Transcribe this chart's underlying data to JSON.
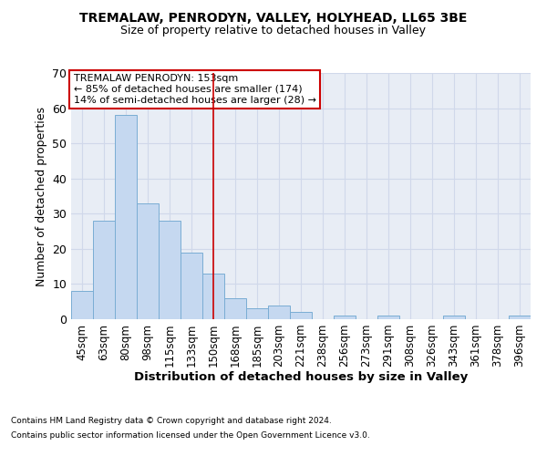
{
  "title1": "TREMALAW, PENRODYN, VALLEY, HOLYHEAD, LL65 3BE",
  "title2": "Size of property relative to detached houses in Valley",
  "xlabel": "Distribution of detached houses by size in Valley",
  "ylabel": "Number of detached properties",
  "all_labels": [
    "45sqm",
    "63sqm",
    "80sqm",
    "98sqm",
    "115sqm",
    "133sqm",
    "150sqm",
    "168sqm",
    "185sqm",
    "203sqm",
    "221sqm",
    "238sqm",
    "256sqm",
    "273sqm",
    "291sqm",
    "308sqm",
    "326sqm",
    "343sqm",
    "361sqm",
    "378sqm",
    "396sqm"
  ],
  "all_values": [
    8,
    28,
    58,
    33,
    28,
    19,
    13,
    6,
    3,
    4,
    2,
    0,
    1,
    0,
    1,
    0,
    0,
    1,
    0,
    0,
    1
  ],
  "bar_color": "#c5d8f0",
  "bar_edge_color": "#7aadd4",
  "vline_x_idx": 6,
  "vline_color": "#cc0000",
  "annotation_line1": "TREMALAW PENRODYN: 153sqm",
  "annotation_line2": "← 85% of detached houses are smaller (174)",
  "annotation_line3": "14% of semi-detached houses are larger (28) →",
  "annotation_box_facecolor": "#ffffff",
  "annotation_box_edgecolor": "#cc0000",
  "ylim": [
    0,
    70
  ],
  "yticks": [
    0,
    10,
    20,
    30,
    40,
    50,
    60,
    70
  ],
  "grid_color": "#d0d8ea",
  "plot_bg_color": "#e8edf5",
  "footer1": "Contains HM Land Registry data © Crown copyright and database right 2024.",
  "footer2": "Contains public sector information licensed under the Open Government Licence v3.0."
}
